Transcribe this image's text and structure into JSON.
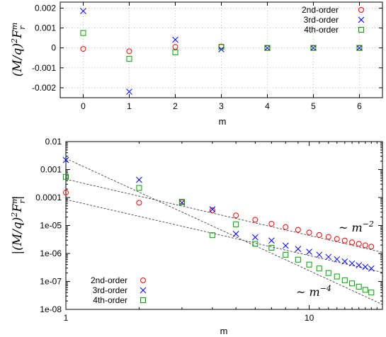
{
  "chart_data": [
    {
      "type": "scatter",
      "xlabel": "m",
      "ylabel": "(M/q)²Fᵣᵐ",
      "xlim": [
        -0.5,
        6.5
      ],
      "ylim": [
        -0.0025,
        0.0023
      ],
      "x_ticks": [
        "0",
        "1",
        "2",
        "3",
        "4",
        "5",
        "6"
      ],
      "y_ticks": [
        "-0.002",
        "-0.001",
        "0",
        "0.001",
        "0.002"
      ],
      "y_tick_values": [
        -0.002,
        -0.001,
        0,
        0.001,
        0.002
      ],
      "grid": true,
      "legend_position": "top-right",
      "series": [
        {
          "name": "2nd-order",
          "color": "#ff0000",
          "marker": "circle",
          "x": [
            0,
            1,
            2,
            3,
            4,
            5,
            6
          ],
          "y": [
            -5e-05,
            -0.00017,
            5e-05,
            7e-05,
            0.0,
            0.0,
            0.0
          ]
        },
        {
          "name": "3rd-order",
          "color": "#0000ff",
          "marker": "cross",
          "x": [
            0,
            1,
            2,
            3,
            4,
            5,
            6
          ],
          "y": [
            0.00185,
            -0.0022,
            0.00041,
            -7e-05,
            0.0,
            0.0,
            0.0
          ]
        },
        {
          "name": "4th-order",
          "color": "#00a000",
          "marker": "square",
          "x": [
            0,
            1,
            2,
            3,
            4,
            5,
            6
          ],
          "y": [
            0.00075,
            -0.00055,
            -0.00022,
            5e-05,
            0.0,
            0.0,
            0.0
          ]
        }
      ]
    },
    {
      "type": "scatter",
      "xlabel": "m",
      "ylabel": "|(M/q)²Fᵣᵐ|",
      "x_scale": "log",
      "y_scale": "log",
      "xlim": [
        1,
        20
      ],
      "ylim": [
        1e-08,
        0.01
      ],
      "x_ticks": [
        "1",
        "10"
      ],
      "x_tick_values": [
        1,
        10
      ],
      "y_ticks": [
        "0.01",
        "0.001",
        "0.0001",
        "1e-05",
        "1e-06",
        "1e-07",
        "1e-08"
      ],
      "y_tick_values": [
        0.01,
        0.001,
        0.0001,
        1e-05,
        1e-06,
        1e-07,
        1e-08
      ],
      "legend_position": "bottom-left",
      "annotations": [
        {
          "text": "~ m⁻²",
          "x": 14,
          "y": 1e-05
        },
        {
          "text": "~ m⁻⁴",
          "x": 11,
          "y": 5e-08
        }
      ],
      "series": [
        {
          "name": "2nd-order",
          "color": "#ff0000",
          "marker": "circle",
          "x": [
            1,
            2,
            3,
            4,
            5,
            6,
            7,
            8,
            9,
            10,
            11,
            12,
            13,
            14,
            15,
            16,
            17,
            18
          ],
          "y": [
            0.00015,
            6.5e-05,
            6.8e-05,
            3.5e-05,
            2.3e-05,
            1.6e-05,
            1.15e-05,
            8.8e-06,
            7e-06,
            5.6e-06,
            4.6e-06,
            3.9e-06,
            3.3e-06,
            2.9e-06,
            2.5e-06,
            2.2e-06,
            1.95e-06,
            1.75e-06
          ]
        },
        {
          "name": "3rd-order",
          "color": "#0000ff",
          "marker": "cross",
          "x": [
            1,
            2,
            3,
            4,
            5,
            6,
            7,
            8,
            9,
            10,
            11,
            12,
            13,
            14,
            15,
            16,
            17,
            18
          ],
          "y": [
            0.0022,
            0.00043,
            6.5e-05,
            3.8e-05,
            5e-06,
            3.8e-06,
            2.9e-06,
            1.9e-06,
            1.45e-06,
            1.15e-06,
            9e-07,
            7.5e-07,
            6.2e-07,
            5.2e-07,
            4.4e-07,
            3.8e-07,
            3.3e-07,
            2.9e-07
          ]
        },
        {
          "name": "4th-order",
          "color": "#00a000",
          "marker": "square",
          "x": [
            1,
            2,
            3,
            4,
            5,
            6,
            7,
            8,
            9,
            10,
            11,
            12,
            13,
            14,
            15,
            16,
            17,
            18
          ],
          "y": [
            0.00055,
            0.00022,
            7e-05,
            4.5e-06,
            1.1e-05,
            2.2e-06,
            1.6e-06,
            9e-07,
            6e-07,
            4e-07,
            2.9e-07,
            2e-07,
            1.5e-07,
            1.1e-07,
            8.5e-08,
            6.5e-08,
            5e-08,
            4e-08
          ]
        }
      ],
      "fit_lines": [
        {
          "from": [
            1,
            8.5e-05
          ],
          "to": [
            20,
            2.1e-07
          ]
        },
        {
          "from": [
            1,
            0.00045
          ],
          "to": [
            20,
            1.1e-06
          ]
        },
        {
          "from": [
            1,
            0.0025
          ],
          "to": [
            20,
            1.5e-08
          ]
        }
      ]
    }
  ]
}
